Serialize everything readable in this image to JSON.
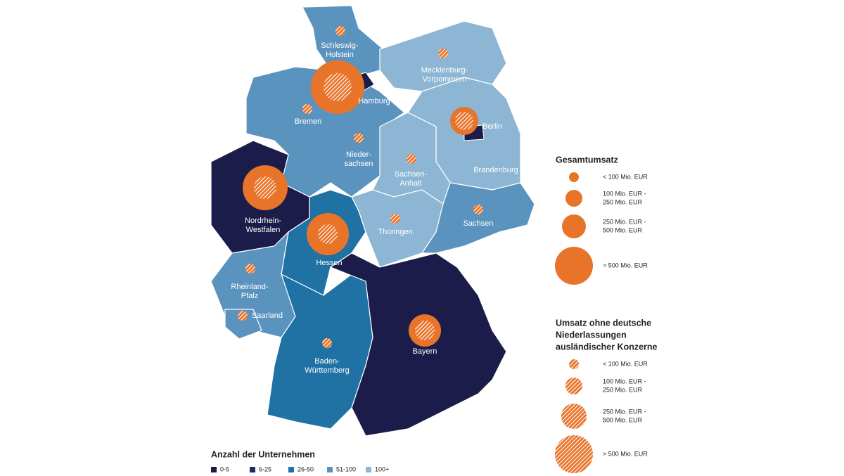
{
  "regions": [
    {
      "label": [
        "Schleswig-",
        "Holstein"
      ]
    },
    {
      "label": [
        "Mecklenburg-",
        "Vorpommern"
      ]
    },
    {
      "label": [
        "Hamburg"
      ]
    },
    {
      "label": [
        "Bremen"
      ]
    },
    {
      "label": [
        "Nieder-",
        "sachsen"
      ]
    },
    {
      "label": [
        "Berlin"
      ]
    },
    {
      "label": [
        "Sachsen-",
        "Anhalt"
      ]
    },
    {
      "label": [
        "Brandenburg"
      ]
    },
    {
      "label": [
        "Nordrhein-",
        "Westfalen"
      ]
    },
    {
      "label": [
        "Hessen"
      ]
    },
    {
      "label": [
        "Thüringen"
      ]
    },
    {
      "label": [
        "Sachsen"
      ]
    },
    {
      "label": [
        "Rheinland-",
        "Pfalz"
      ]
    },
    {
      "label": [
        "Saarland"
      ]
    },
    {
      "label": [
        "Baden-",
        "Württemberg"
      ]
    },
    {
      "label": [
        "Bayern"
      ]
    }
  ],
  "legend_total": {
    "title": "Gesamtumsatz",
    "items": [
      [
        "< 100 Mio. EUR"
      ],
      [
        "100 Mio. EUR -",
        "250 Mio. EUR"
      ],
      [
        "250 Mio. EUR -",
        "500 Mio. EUR"
      ],
      [
        "> 500 Mio. EUR"
      ]
    ]
  },
  "legend_foreign": {
    "title": [
      "Umsatz ohne deutsche",
      "Niederlassungen",
      "ausländischer Konzerne"
    ],
    "items": [
      [
        "< 100 Mio. EUR"
      ],
      [
        "100 Mio. EUR -",
        "250 Mio. EUR"
      ],
      [
        "250 Mio. EUR -",
        "500 Mio. EUR"
      ],
      [
        "> 500 Mio. EUR"
      ]
    ]
  },
  "legend_companies": {
    "title": "Anzahl der Unternehmen",
    "items": [
      "0-5",
      "6-25",
      "26-50",
      "51-100",
      "100+"
    ]
  }
}
